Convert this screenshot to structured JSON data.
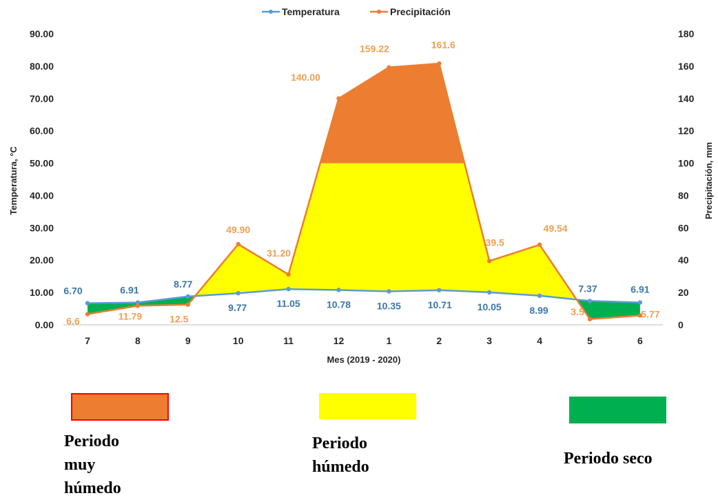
{
  "chart_data": {
    "type": "line",
    "categories": [
      "7",
      "8",
      "9",
      "10",
      "11",
      "12",
      "1",
      "2",
      "3",
      "4",
      "5",
      "6"
    ],
    "xlabel": "Mes (2019 - 2020)",
    "ylabel_left": "Temperatura, °C",
    "ylabel_right": "Precipitación, mm",
    "ylim_left": [
      0,
      90
    ],
    "ylim_right": [
      0,
      180
    ],
    "yticks_left": [
      "0.00",
      "10.00",
      "20.00",
      "30.00",
      "40.00",
      "50.00",
      "60.00",
      "70.00",
      "80.00",
      "90.00"
    ],
    "yticks_right": [
      "0",
      "20",
      "40",
      "60",
      "80",
      "100",
      "120",
      "140",
      "160",
      "180"
    ],
    "legend_position": "top-center",
    "series": [
      {
        "name": "Temperatura",
        "axis": "left",
        "color": "#5b9bd5",
        "label_color": "#3a76ad",
        "values": [
          6.7,
          6.91,
          8.77,
          9.77,
          11.05,
          10.78,
          10.35,
          10.71,
          10.05,
          8.99,
          7.37,
          6.91
        ],
        "labels": [
          "6.70",
          "6.91",
          "8.77",
          "9.77",
          "11.05",
          "10.78",
          "10.35",
          "10.71",
          "10.05",
          "8.99",
          "7.37",
          "6.91"
        ]
      },
      {
        "name": "Precipitación",
        "axis": "right",
        "color": "#ed7d31",
        "label_color": "#f0a050",
        "values": [
          6.6,
          11.79,
          12.5,
          49.9,
          31.2,
          140.0,
          159.22,
          161.6,
          39.5,
          49.54,
          3.5,
          5.77
        ],
        "labels": [
          "6.6",
          "11.79",
          "12.5",
          "49.90",
          "31.20",
          "140.00",
          "159.22",
          "161.6",
          "39.5",
          "49.54",
          "3.5",
          "5.77"
        ]
      }
    ],
    "thresholds": {
      "humid_mm": 100
    },
    "period_colors": {
      "very_humid": "#ed7d31",
      "humid": "#ffff00",
      "dry": "#00b050"
    }
  },
  "legend_periods": [
    {
      "label": "Periodo muy húmedo",
      "color": "#ed7d31",
      "border": "#ff0000"
    },
    {
      "label": "Periodo húmedo",
      "color": "#ffff00",
      "border": ""
    },
    {
      "label": "Periodo seco",
      "color": "#00b050",
      "border": ""
    }
  ]
}
